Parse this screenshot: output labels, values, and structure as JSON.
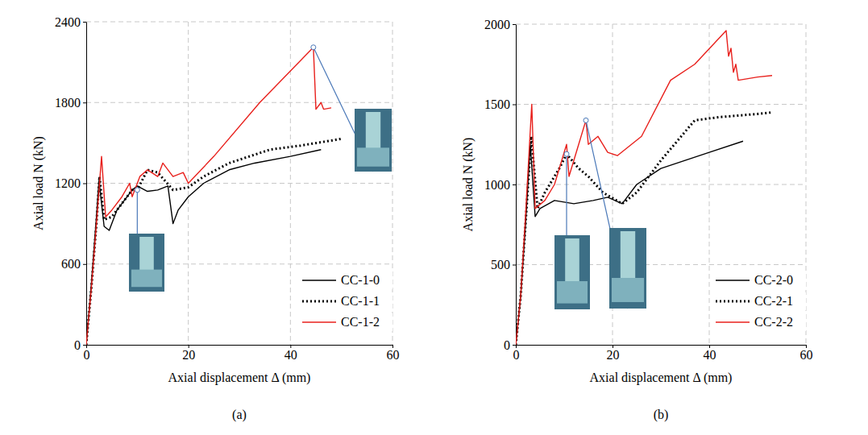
{
  "chart_data": [
    {
      "type": "line",
      "title": "(a)",
      "x_label": "Axial displacement Δ (mm)",
      "y_label": "Axial load N (kN)",
      "xlim": [
        0,
        60
      ],
      "xticks": [
        0,
        20,
        40,
        60
      ],
      "ylim": [
        0,
        2400
      ],
      "yticks": [
        0,
        600,
        1200,
        1800,
        2400
      ],
      "grid": true,
      "legend": "lower right",
      "series": [
        {
          "name": "CC-1-0",
          "color": "#000000",
          "line_style": "solid",
          "x": [
            0,
            1,
            2,
            2.5,
            3.5,
            4.5,
            6,
            9,
            10,
            12,
            14,
            16,
            17,
            18,
            20,
            23,
            28,
            33,
            40,
            46
          ],
          "values": [
            0,
            450,
            950,
            1220,
            880,
            850,
            1000,
            1150,
            1180,
            1140,
            1150,
            1180,
            900,
            1000,
            1100,
            1200,
            1300,
            1350,
            1400,
            1450
          ]
        },
        {
          "name": "CC-1-1",
          "color": "#000000",
          "line_style": "dotted",
          "x": [
            0,
            1,
            2,
            2.6,
            3.5,
            5,
            7,
            9,
            10,
            12,
            14,
            17,
            20,
            23,
            28,
            36,
            42,
            50
          ],
          "values": [
            0,
            420,
            900,
            1250,
            930,
            950,
            1050,
            1150,
            1150,
            1300,
            1280,
            1150,
            1170,
            1250,
            1350,
            1450,
            1480,
            1530
          ]
        },
        {
          "name": "CC-1-2",
          "color": "#e8201c",
          "line_style": "solid",
          "x": [
            0,
            1,
            2,
            3,
            3.8,
            5,
            7,
            8.5,
            9,
            10.5,
            12,
            14,
            15,
            17,
            19,
            20,
            25,
            34,
            44.5,
            45,
            46,
            46.5,
            48
          ],
          "values": [
            0,
            420,
            900,
            1400,
            950,
            1000,
            1100,
            1200,
            1100,
            1250,
            1300,
            1250,
            1350,
            1250,
            1280,
            1200,
            1400,
            1800,
            2210,
            1750,
            1800,
            1750,
            1760
          ]
        }
      ]
    },
    {
      "type": "line",
      "title": "(b)",
      "x_label": "Axial displacement Δ (mm)",
      "y_label": "Axial load N (kN)",
      "xlim": [
        0,
        60
      ],
      "xticks": [
        0,
        20,
        40,
        60
      ],
      "ylim": [
        0,
        2000
      ],
      "yticks": [
        0,
        500,
        1000,
        1500,
        2000
      ],
      "grid": true,
      "legend": "lower right",
      "series": [
        {
          "name": "CC-2-0",
          "color": "#000000",
          "line_style": "solid",
          "x": [
            0,
            1,
            2,
            3,
            4,
            5,
            8,
            12,
            16,
            19,
            22,
            25,
            30,
            35,
            40,
            47
          ],
          "values": [
            0,
            300,
            750,
            1250,
            800,
            850,
            900,
            880,
            900,
            920,
            880,
            1000,
            1100,
            1150,
            1200,
            1270
          ]
        },
        {
          "name": "CC-2-1",
          "color": "#000000",
          "line_style": "dotted",
          "x": [
            0,
            1,
            2,
            3.2,
            4.5,
            6,
            9,
            10.5,
            13,
            15,
            18,
            22,
            25,
            30,
            37,
            42,
            50,
            53
          ],
          "values": [
            0,
            300,
            750,
            1300,
            850,
            950,
            1100,
            1190,
            1100,
            1050,
            950,
            880,
            950,
            1150,
            1400,
            1420,
            1440,
            1450
          ]
        },
        {
          "name": "CC-2-2",
          "color": "#e8201c",
          "line_style": "solid",
          "x": [
            0,
            1,
            2,
            3.3,
            4,
            6,
            8,
            10.5,
            11,
            13,
            14.5,
            15,
            17,
            19,
            21,
            26,
            32,
            37,
            43.5,
            44,
            44.5,
            45,
            45.5,
            46,
            50,
            53
          ],
          "values": [
            0,
            300,
            800,
            1500,
            850,
            900,
            1000,
            1250,
            1050,
            1250,
            1400,
            1250,
            1300,
            1200,
            1180,
            1300,
            1650,
            1750,
            1960,
            1800,
            1850,
            1700,
            1750,
            1650,
            1670,
            1680
          ]
        }
      ]
    }
  ]
}
